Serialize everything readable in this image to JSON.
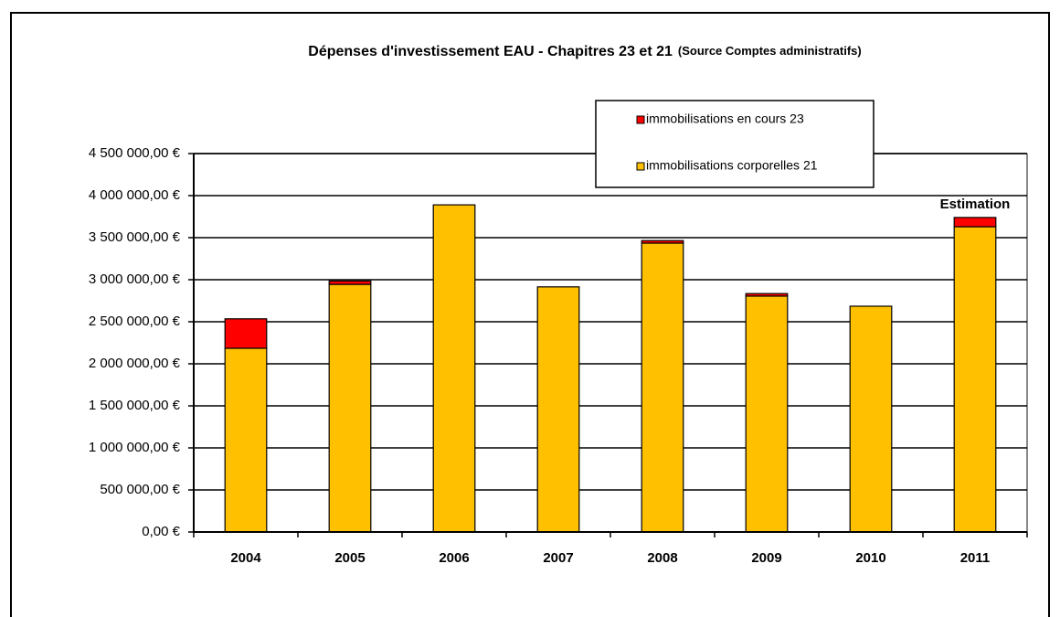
{
  "chart_data": {
    "type": "stacked_bar",
    "title": "Dépenses d'investissement EAU  - Chapitres 23 et 21",
    "subtitle": "(Source Comptes administratifs)",
    "categories": [
      "2004",
      "2005",
      "2006",
      "2007",
      "2008",
      "2009",
      "2010",
      "2011"
    ],
    "series": [
      {
        "name": "immobilisations corporelles 21",
        "color": "#ffc000",
        "values": [
          2185000,
          2945000,
          3890000,
          2915000,
          3435000,
          2805000,
          2685000,
          3630000
        ]
      },
      {
        "name": "immobilisations en cours 23",
        "color": "#ff0000",
        "values": [
          350000,
          40000,
          0,
          0,
          30000,
          30000,
          0,
          110000
        ]
      }
    ],
    "annotations": [
      "Estimation"
    ],
    "ylim": [
      0,
      4500000
    ],
    "yticks": [
      {
        "value": 0,
        "label": "0,00 €"
      },
      {
        "value": 500000,
        "label": "500 000,00 €"
      },
      {
        "value": 1000000,
        "label": "1 000 000,00 €"
      },
      {
        "value": 1500000,
        "label": "1 500 000,00 €"
      },
      {
        "value": 2000000,
        "label": "2 000 000,00 €"
      },
      {
        "value": 2500000,
        "label": "2 500 000,00 €"
      },
      {
        "value": 3000000,
        "label": "3 000 000,00 €"
      },
      {
        "value": 3500000,
        "label": "3 500 000,00 €"
      },
      {
        "value": 4000000,
        "label": "4 000 000,00 €"
      },
      {
        "value": 4500000,
        "label": "4 500 000,00 €"
      }
    ],
    "grid": true
  }
}
